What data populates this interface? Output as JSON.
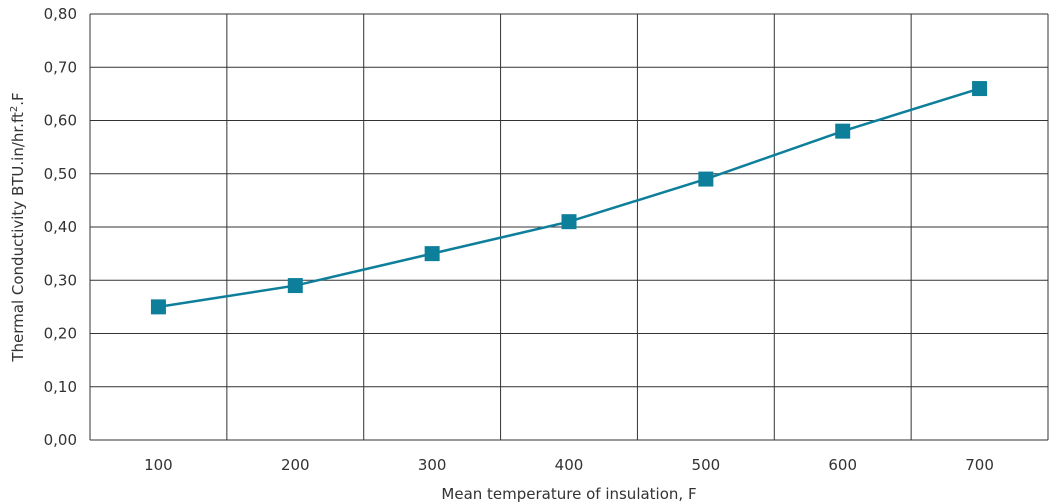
{
  "chart_data": {
    "type": "line",
    "categories": [
      "100",
      "200",
      "300",
      "400",
      "500",
      "600",
      "700"
    ],
    "series": [
      {
        "values": [
          0.25,
          0.29,
          0.35,
          0.41,
          0.49,
          0.58,
          0.66
        ]
      }
    ],
    "xlabel": "Mean temperature of insulation, F",
    "ylabel": {
      "prefix": "Thermal Conductivity BTU.in/hr.ft",
      "sup": "2",
      "suffix": ".F"
    },
    "ylim": [
      0,
      0.8
    ],
    "yticks": [
      "0,00",
      "0,10",
      "0,20",
      "0,30",
      "0,40",
      "0,50",
      "0,60",
      "0,70",
      "0,80"
    ],
    "grid": true,
    "legend": "none",
    "colors": {
      "series": "#0e7f9a",
      "grid": "#333333",
      "text": "#333333"
    }
  }
}
